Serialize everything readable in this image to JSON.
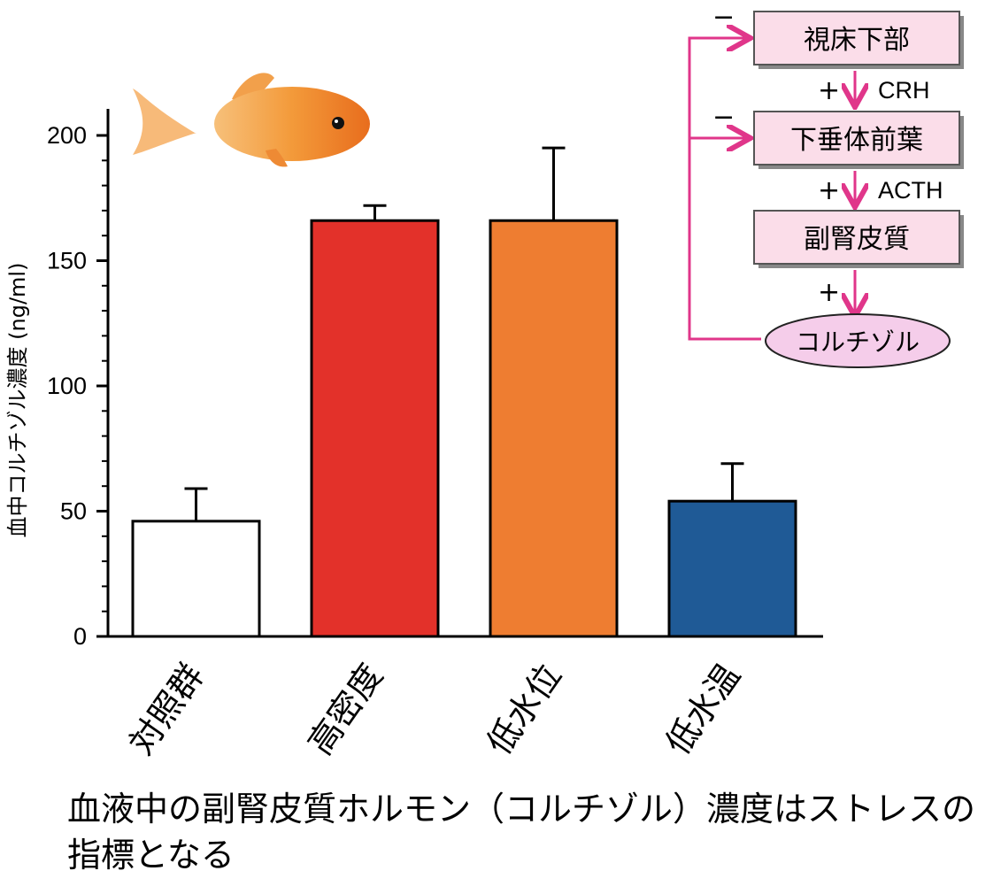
{
  "chart_data": {
    "type": "bar",
    "title": "",
    "xlabel": "",
    "ylabel": "血中コルチゾル濃度 (ng/ml)",
    "ylim": [
      0,
      200
    ],
    "yticks": [
      "0",
      "50",
      "100",
      "150",
      "200"
    ],
    "categories": [
      "対照群",
      "高密度",
      "低水位",
      "低水温"
    ],
    "values": [
      46,
      166,
      166,
      54
    ],
    "errors": [
      13,
      6,
      29,
      15
    ],
    "colors": [
      "#ffffff",
      "#e3312a",
      "#ee7d31",
      "#1f5a96"
    ]
  },
  "pathway": {
    "boxes": [
      "視床下部",
      "下垂体前葉",
      "副腎皮質"
    ],
    "hormones": [
      "CRH",
      "ACTH",
      ""
    ],
    "plus": "+",
    "minus": "−",
    "final": "コルチゾル",
    "box_color": "#fbdde9",
    "arrow_color": "#e0368a",
    "ellipse_color": "#f5cdea"
  },
  "fish_icon": "goldfish",
  "caption": {
    "line1": "血液中の副腎皮質ホルモン（コルチゾル）濃度はストレスの",
    "line2": "指標となる"
  }
}
